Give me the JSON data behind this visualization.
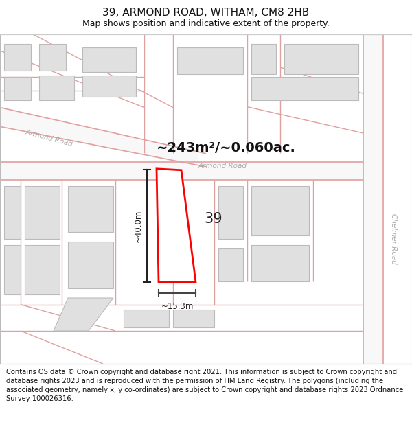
{
  "title": "39, ARMOND ROAD, WITHAM, CM8 2HB",
  "subtitle": "Map shows position and indicative extent of the property.",
  "area_text": "~243m²/~0.060ac.",
  "label_39": "39",
  "dim_height": "~40.0m",
  "dim_width": "~15.3m",
  "road_label_armond_diag": "Armond Road",
  "road_label_armond_horiz": "Armond Road",
  "road_label_chelmer": "Chelmer Road",
  "footer": "Contains OS data © Crown copyright and database right 2021. This information is subject to Crown copyright and database rights 2023 and is reproduced with the permission of HM Land Registry. The polygons (including the associated geometry, namely x, y co-ordinates) are subject to Crown copyright and database rights 2023 Ordnance Survey 100026316.",
  "bg_color": "#ffffff",
  "map_bg": "#ffffff",
  "road_fill": "#f0f0f0",
  "road_line_color": "#e0a0a0",
  "building_fill": "#e0e0e0",
  "building_edge": "#bbbbbb",
  "plot_edge": "#ff0000",
  "dim_line_color": "#333333",
  "road_label_color": "#aaaaaa",
  "area_text_color": "#111111",
  "title_fontsize": 11,
  "subtitle_fontsize": 9,
  "footer_fontsize": 7.2
}
